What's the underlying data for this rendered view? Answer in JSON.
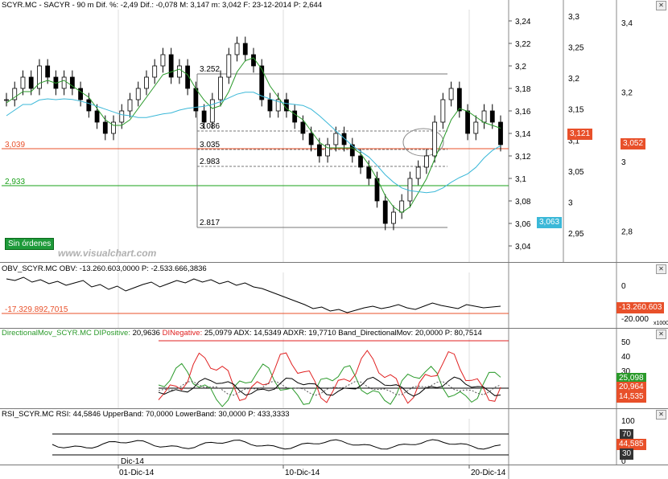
{
  "main": {
    "header": "SCYR.MC - SACYR - 90 m Dif. %: -2,49 Dif.: -0,078 M: 3,147 m: 3,042 F: 23-12-2014 P: 2,644",
    "price_axis_ticks": [
      "3,24",
      "3,22",
      "3,2",
      "3,18",
      "3,16",
      "3,14",
      "3,12",
      "3,1",
      "3,08",
      "3,06",
      "3,04"
    ],
    "axis2_ticks": [
      "3,3",
      "3,25",
      "3,2",
      "3,15",
      "3,1",
      "3,05",
      "3",
      "2,95"
    ],
    "axis3_ticks": [
      "3,4",
      "3,2",
      "3",
      "2,8"
    ],
    "fib_labels": [
      "3.252",
      "3.086",
      "3.035",
      "2.983",
      "2.817"
    ],
    "hline_labels": [
      "3,039",
      "2,933"
    ],
    "badge_last_price": "3,121",
    "badge_axis3": "3,052",
    "badge_blue": "3,063",
    "sin_ordenes": "Sin órdenes",
    "watermark": "www.visualchart.com",
    "colors": {
      "orange": "#e8502a",
      "green_line": "#1aa01a",
      "blue_ma": "#3bb8d8",
      "green_ma": "#2a9a2a"
    }
  },
  "obv": {
    "header": "OBV_SCYR.MC OBV: -13.260.603,0000 P: -2.533.666,3836",
    "ticks": [
      "0",
      "-20.000"
    ],
    "hline_label": "-17.329.892,7015",
    "badge": "-13.260.603",
    "multiplier": "x1000"
  },
  "dmi": {
    "header_parts": [
      {
        "text": "DirectionalMov_SCYR.MC",
        "color": "#2a9a2a"
      },
      {
        "text": " DIPositive: ",
        "color": "#2a9a2a"
      },
      {
        "text": "20,9636 ",
        "color": "#000"
      },
      {
        "text": "DINegative: ",
        "color": "#e02020"
      },
      {
        "text": "25,0979 ADX: 14,5349 ADXR: 19,7710 Band_DirectionalMov: 20,0000 P: 80,7514",
        "color": "#000"
      }
    ],
    "ticks": [
      "50",
      "40",
      "30",
      "20",
      "10"
    ],
    "badge1": "25,098",
    "badge2": "20,964",
    "badge3": "14,535"
  },
  "rsi": {
    "header": "RSI_SCYR.MC RSI: 44,5846 UpperBand: 70,0000 LowerBand: 30,0000 P: 433,3333",
    "ticks": [
      "100",
      "50",
      "0"
    ],
    "badge_upper": "70",
    "badge_value": "44,585",
    "badge_lower": "30"
  },
  "xaxis": {
    "labels": [
      "Dic-14",
      "01-Dic-14",
      "10-Dic-14",
      "20-Dic-14"
    ]
  },
  "chart_data": {
    "type": "candlestick",
    "title": "SCYR.MC - SACYR - 90 m",
    "x_labels": [
      "01-Dic-14",
      "10-Dic-14",
      "20-Dic-14"
    ],
    "ylim": [
      3.03,
      3.25
    ],
    "series": [
      {
        "name": "price",
        "values": [
          3.17,
          3.18,
          3.19,
          3.18,
          3.2,
          3.19,
          3.18,
          3.19,
          3.18,
          3.17,
          3.16,
          3.15,
          3.14,
          3.15,
          3.16,
          3.17,
          3.18,
          3.19,
          3.2,
          3.21,
          3.19,
          3.2,
          3.18,
          3.16,
          3.15,
          3.17,
          3.19,
          3.21,
          3.22,
          3.21,
          3.2,
          3.17,
          3.16,
          3.17,
          3.16,
          3.15,
          3.14,
          3.13,
          3.12,
          3.13,
          3.14,
          3.13,
          3.12,
          3.11,
          3.1,
          3.08,
          3.06,
          3.07,
          3.08,
          3.1,
          3.11,
          3.12,
          3.15,
          3.17,
          3.18,
          3.16,
          3.14,
          3.15,
          3.16,
          3.15,
          3.13
        ]
      }
    ],
    "hlines": [
      3.039,
      2.933
    ],
    "fib_levels": [
      3.252,
      3.086,
      3.035,
      2.983,
      2.817
    ]
  }
}
